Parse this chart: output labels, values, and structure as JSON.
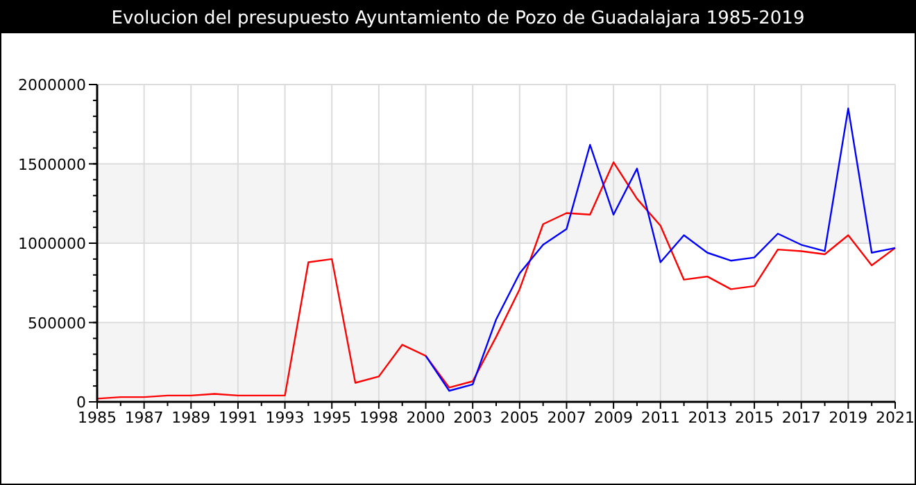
{
  "chart_data": {
    "type": "line",
    "title": "Evolucion del presupuesto Ayuntamiento de Pozo de Guadalajara 1985-2019",
    "categories": [
      "1985",
      null,
      "1987",
      null,
      "1989",
      null,
      "1991",
      null,
      "1993",
      null,
      "1995",
      null,
      "1998",
      null,
      "2000",
      null,
      "2003",
      null,
      "2005",
      null,
      "2007",
      null,
      "2009",
      null,
      "2011",
      null,
      "2013",
      null,
      "2015",
      null,
      "2017",
      null,
      "2019",
      null,
      "2021"
    ],
    "series": [
      {
        "color": "#ff0000",
        "values": [
          20000,
          30000,
          30000,
          40000,
          40000,
          50000,
          40000,
          40000,
          40000,
          880000,
          900000,
          120000,
          160000,
          360000,
          290000,
          90000,
          130000,
          410000,
          710000,
          1120000,
          1190000,
          1180000,
          1510000,
          1280000,
          1110000,
          770000,
          790000,
          710000,
          730000,
          960000,
          950000,
          930000,
          1050000,
          860000,
          970000
        ]
      },
      {
        "color": "#0000ff",
        "values": [
          null,
          null,
          null,
          null,
          null,
          null,
          null,
          null,
          null,
          null,
          null,
          null,
          null,
          null,
          290000,
          70000,
          110000,
          520000,
          810000,
          990000,
          1090000,
          1620000,
          1180000,
          1470000,
          880000,
          1050000,
          940000,
          890000,
          910000,
          1060000,
          990000,
          950000,
          1850000,
          940000,
          970000
        ]
      }
    ],
    "ylim": [
      0,
      2000000
    ],
    "yticks": [
      0,
      500000,
      1000000,
      1500000,
      2000000
    ],
    "grid": true,
    "marker": "none",
    "line_style": "solid"
  }
}
